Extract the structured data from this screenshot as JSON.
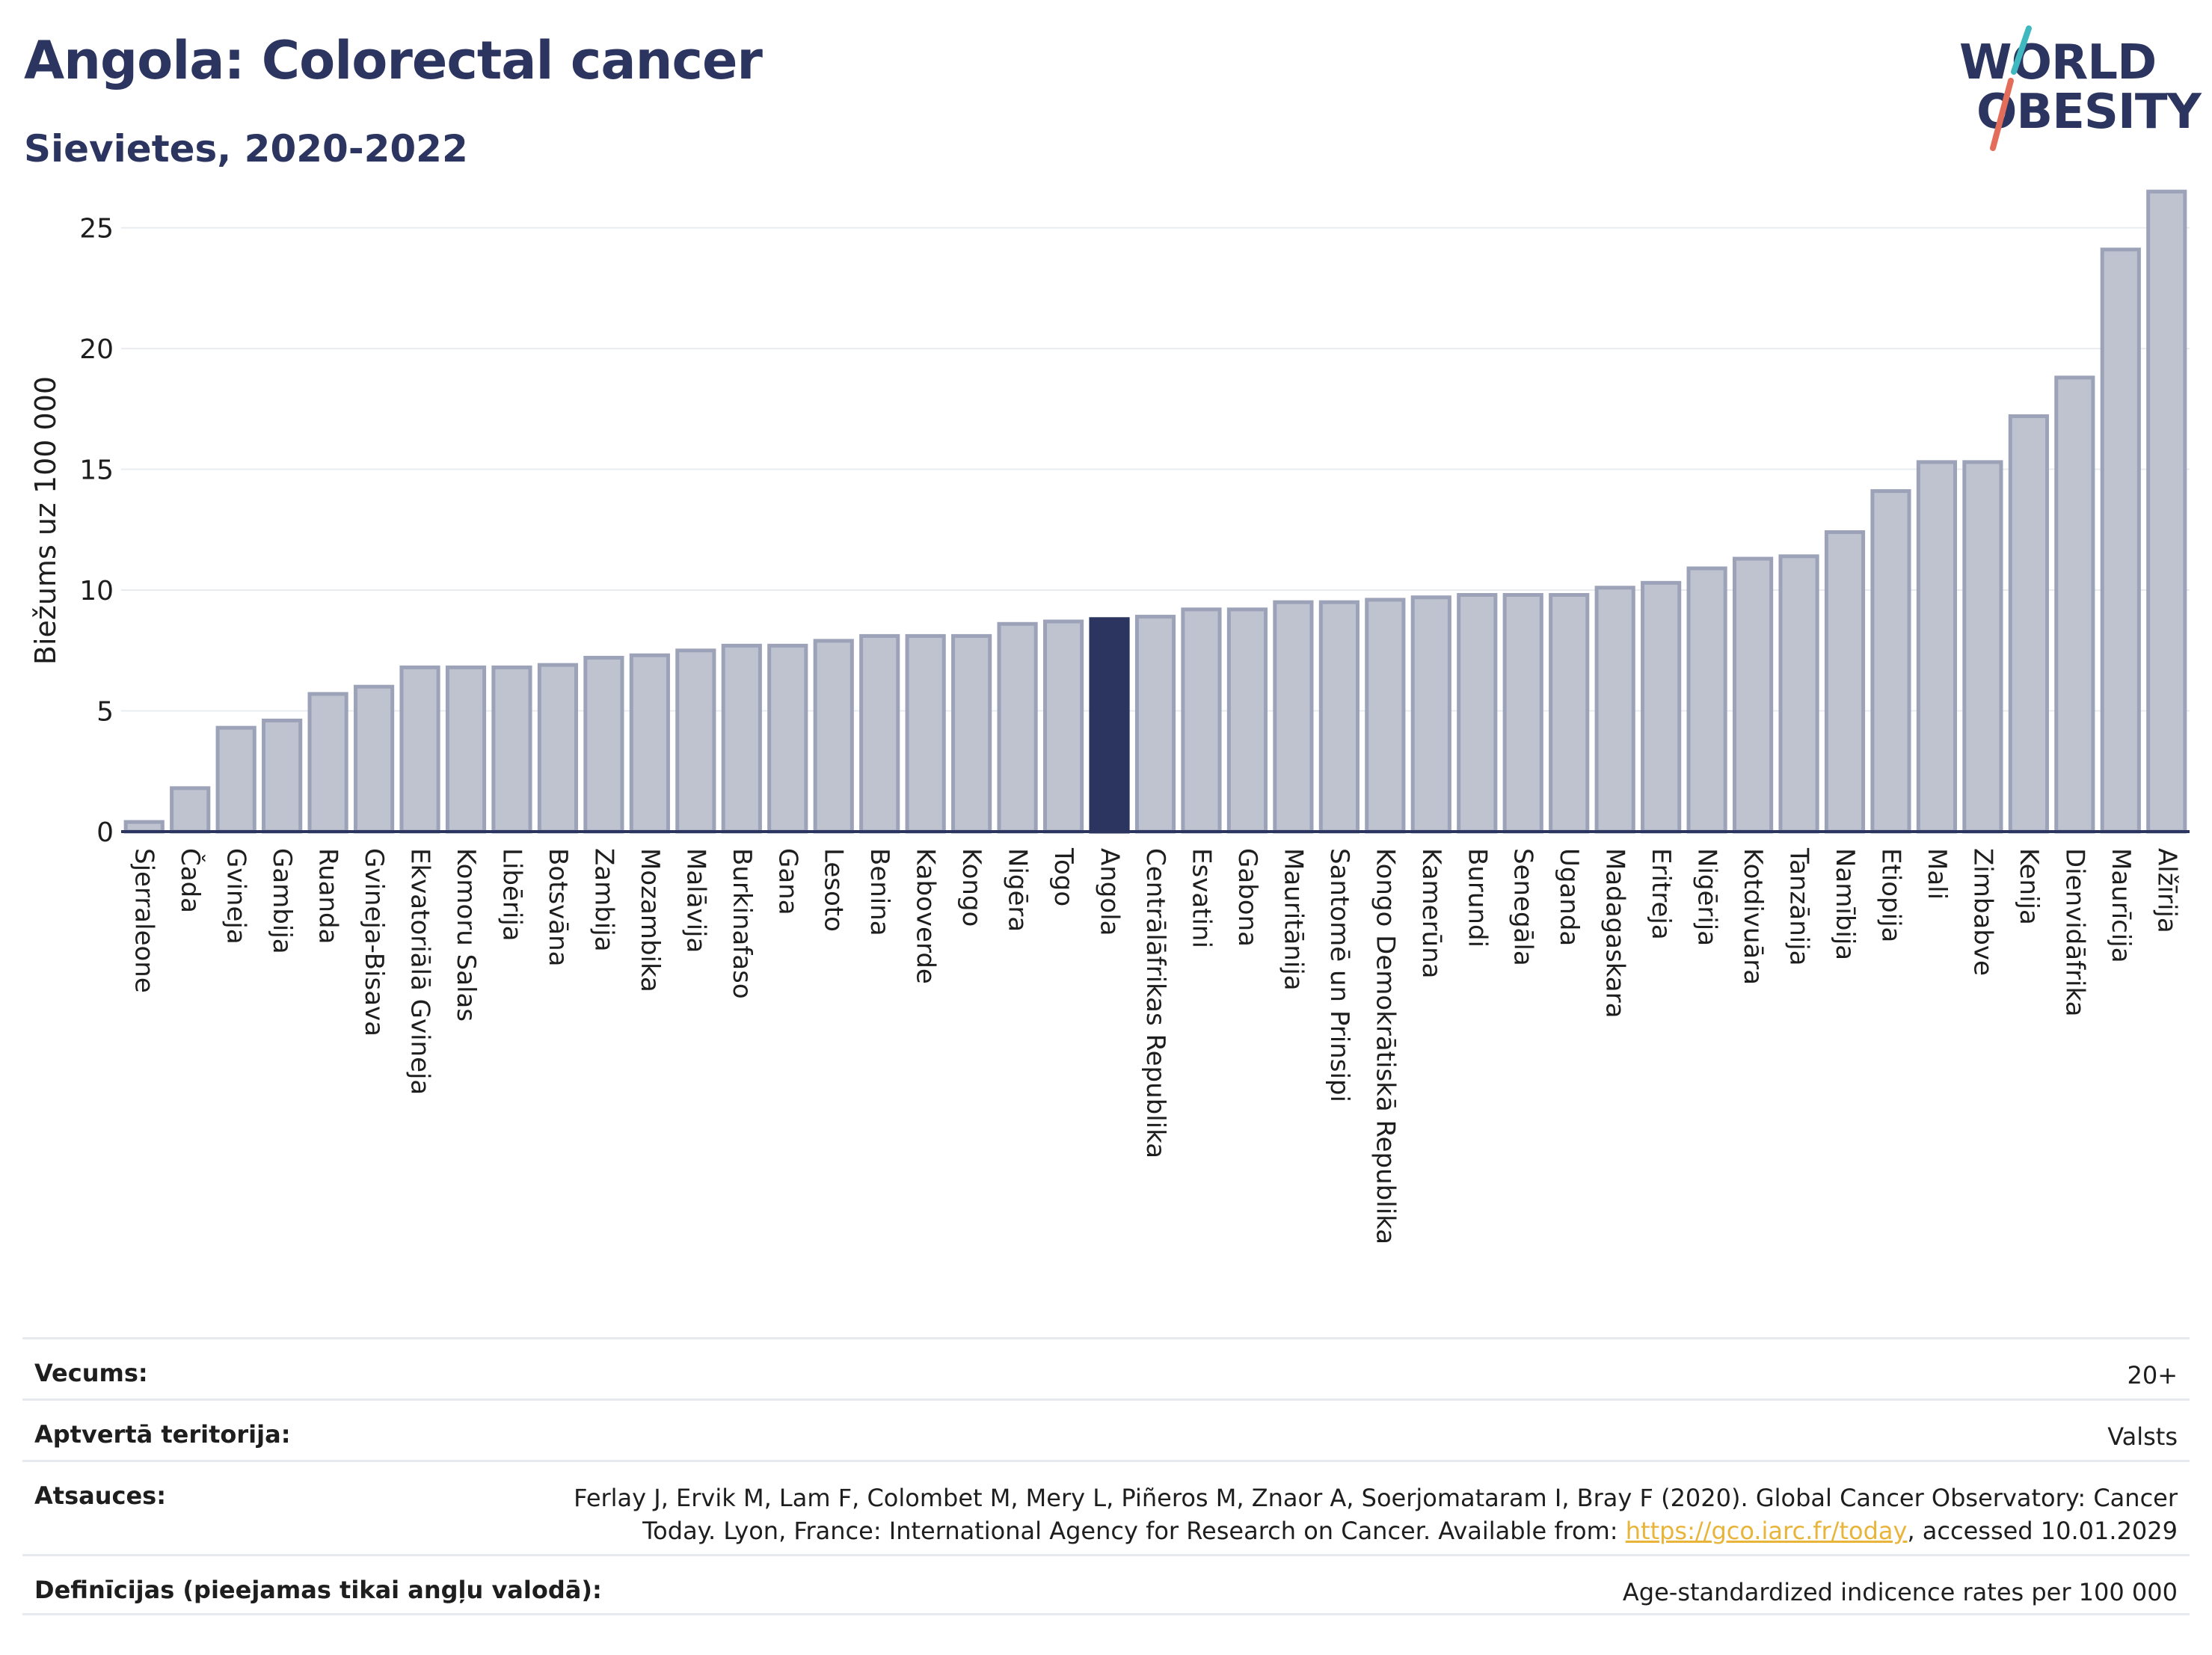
{
  "title": "Angola: Colorectal cancer",
  "subtitle": "Sievietes, 2020-2022",
  "logo": {
    "line1": "WORLD",
    "line2": "OBESITY"
  },
  "colors": {
    "title": "#2b3560",
    "bar_fill": "#bfc3d0",
    "bar_stroke": "#9ca2b8",
    "highlight": "#2b3560",
    "logo_teal": "#3fb8c0",
    "logo_coral": "#e36d5b",
    "link": "#e8b43a"
  },
  "chart_data": {
    "type": "bar",
    "ylabel": "Biežums uz 100 000",
    "ylim": [
      0,
      27
    ],
    "yticks": [
      0,
      5,
      10,
      15,
      20,
      25
    ],
    "grid": true,
    "highlight": "Angola",
    "categories": [
      "Sjerraleone",
      "Čada",
      "Gvineja",
      "Gambija",
      "Ruanda",
      "Gvineja-Bisava",
      "Ekvatoriālā Gvineja",
      "Komoru Salas",
      "Libērija",
      "Botsvāna",
      "Zambija",
      "Mozambika",
      "Malāvija",
      "Burkinafaso",
      "Gana",
      "Lesoto",
      "Benina",
      "Kaboverde",
      "Kongo",
      "Nigēra",
      "Togo",
      "Angola",
      "Centrālāfrikas Republika",
      "Esvatini",
      "Gabona",
      "Mauritānija",
      "Santomē un Prinsipi",
      "Kongo Demokrātiskā Republika",
      "Kamerūna",
      "Burundi",
      "Senegāla",
      "Uganda",
      "Madagaskara",
      "Eritreja",
      "Nigērija",
      "Kotdivuāra",
      "Tanzānija",
      "Namībija",
      "Etiopija",
      "Mali",
      "Zimbabve",
      "Kenija",
      "Dienvidāfrika",
      "Maurīcija",
      "Alžīrija"
    ],
    "values": [
      0.4,
      1.8,
      4.3,
      4.6,
      5.7,
      6.0,
      6.8,
      6.8,
      6.8,
      6.9,
      7.2,
      7.3,
      7.5,
      7.7,
      7.7,
      7.9,
      8.1,
      8.1,
      8.1,
      8.6,
      8.7,
      8.8,
      8.9,
      9.2,
      9.2,
      9.5,
      9.5,
      9.6,
      9.7,
      9.8,
      9.8,
      9.8,
      10.1,
      10.3,
      10.9,
      11.3,
      11.4,
      12.4,
      14.1,
      15.3,
      15.3,
      17.2,
      18.8,
      24.1,
      26.5
    ]
  },
  "meta": {
    "age_label": "Vecums:",
    "age_value": "20+",
    "territory_label": "Aptvertā teritorija:",
    "territory_value": "Valsts",
    "refs_label": "Atsauces:",
    "refs_line1": "Ferlay J, Ervik M, Lam F, Colombet M, Mery L, Piñeros M, Znaor A, Soerjomataram I, Bray F (2020). Global Cancer Observatory: Cancer",
    "refs_line2_before": "Today. Lyon, France: International Agency for Research on Cancer. Available from: ",
    "refs_link": "https://gco.iarc.fr/today",
    "refs_line2_after": ", accessed 10.01.2029",
    "defs_label": "Definīcijas (pieejamas tikai angļu valodā):",
    "defs_value": "Age-standardized indicence rates per 100 000"
  }
}
